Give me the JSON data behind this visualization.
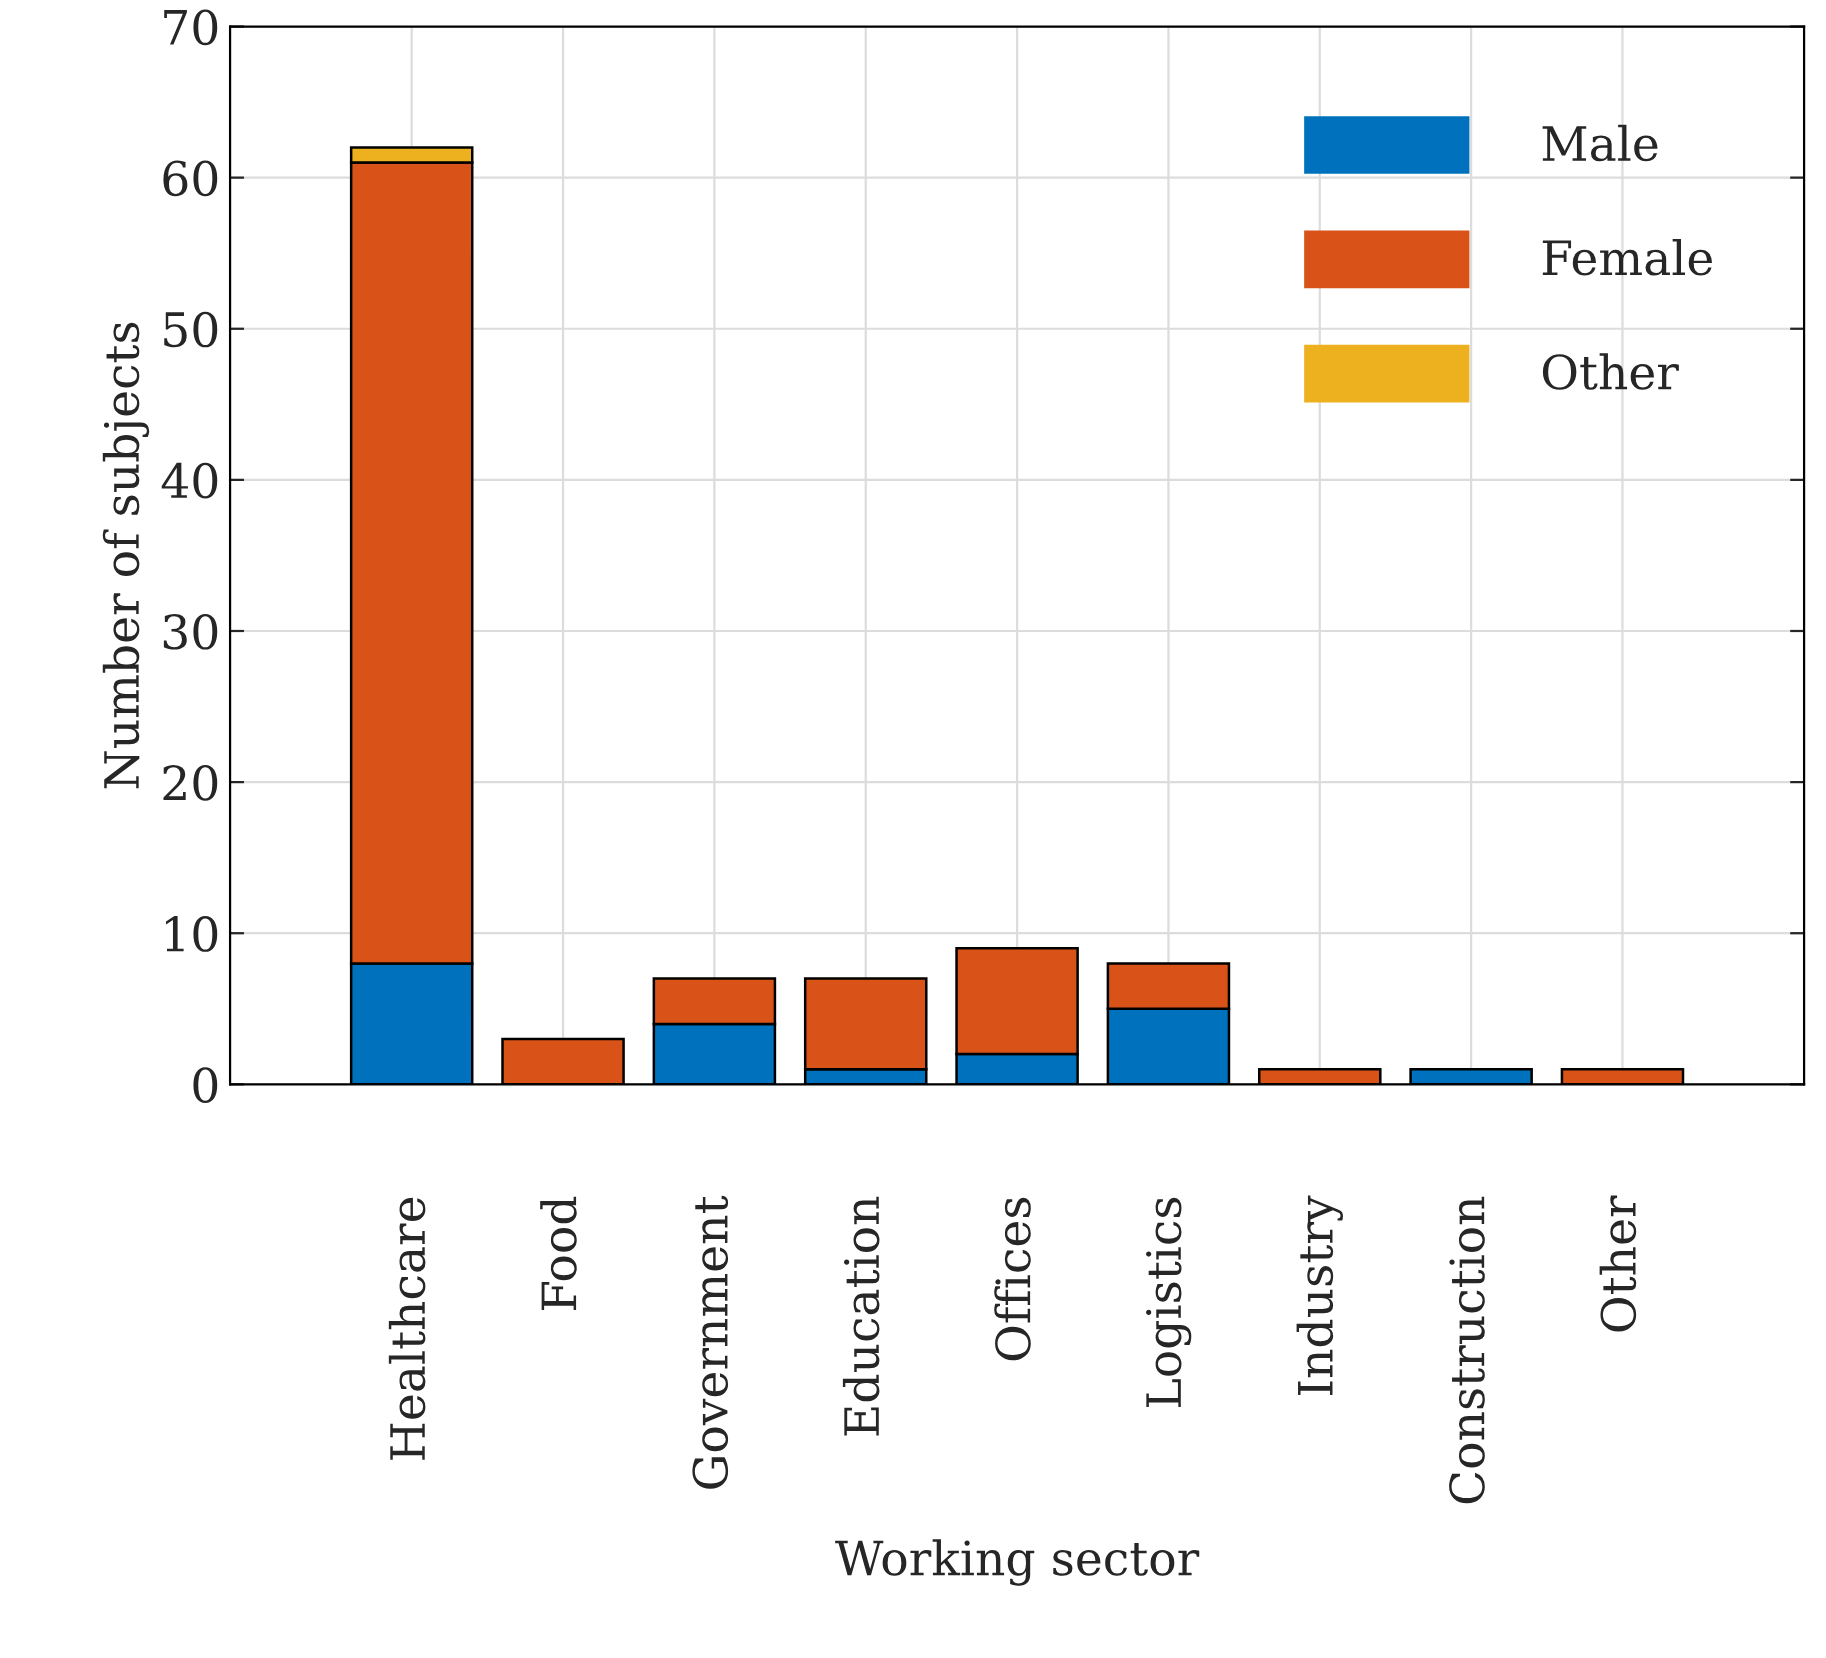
{
  "chart_data": {
    "type": "bar",
    "stacked": true,
    "xlabel": "Working sector",
    "ylabel": "Number of subjects",
    "categories": [
      "Healthcare",
      "Food",
      "Government",
      "Education",
      "Offices",
      "Logistics",
      "Industry",
      "Construction",
      "Other"
    ],
    "series": [
      {
        "name": "Male",
        "color": "#0072bd",
        "values": [
          8,
          null,
          4,
          1,
          2,
          5,
          null,
          1,
          null
        ]
      },
      {
        "name": "Female",
        "color": "#d95319",
        "values": [
          53,
          3,
          3,
          6,
          7,
          3,
          1,
          null,
          1
        ]
      },
      {
        "name": "Other",
        "color": "#edb120",
        "values": [
          1,
          null,
          null,
          null,
          null,
          null,
          null,
          null,
          null
        ]
      }
    ],
    "ylim": [
      0,
      70
    ],
    "yticks": [
      0,
      10,
      20,
      30,
      40,
      50,
      60,
      70
    ],
    "grid": true,
    "legend": "top right"
  }
}
